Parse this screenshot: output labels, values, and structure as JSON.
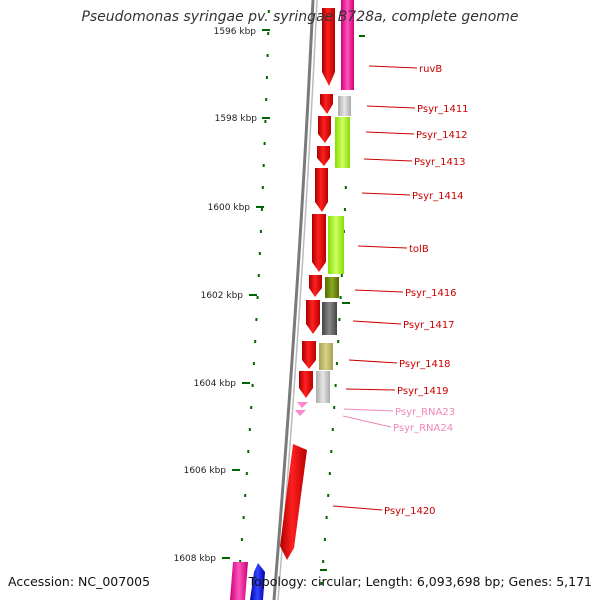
{
  "title": "Pseudomonas syringae pv. syringae B728a, complete genome",
  "footer": {
    "accession": "Accession: NC_007005",
    "summary": "Topology: circular; Length: 6,093,698 bp; Genes: 5,171"
  },
  "ruler": {
    "ticks": [
      {
        "label": "1596 kbp"
      },
      {
        "label": "1598 kbp"
      },
      {
        "label": "1600 kbp"
      },
      {
        "label": "1602 kbp"
      },
      {
        "label": "1604 kbp"
      },
      {
        "label": "1606 kbp"
      },
      {
        "label": "1608 kbp"
      }
    ]
  },
  "genes": [
    {
      "label": "ruvB",
      "color": "#cc0000"
    },
    {
      "label": "Psyr_1411",
      "color": "#cc0000"
    },
    {
      "label": "Psyr_1412",
      "color": "#cc0000"
    },
    {
      "label": "Psyr_1413",
      "color": "#cc0000"
    },
    {
      "label": "Psyr_1414",
      "color": "#cc0000"
    },
    {
      "label": "tolB",
      "color": "#cc0000"
    },
    {
      "label": "Psyr_1416",
      "color": "#cc0000"
    },
    {
      "label": "Psyr_1417",
      "color": "#cc0000"
    },
    {
      "label": "Psyr_1418",
      "color": "#cc0000"
    },
    {
      "label": "Psyr_1419",
      "color": "#cc0000"
    },
    {
      "label": "Psyr_RNA23",
      "color": "#ee88bb"
    },
    {
      "label": "Psyr_RNA24",
      "color": "#ee88bb"
    },
    {
      "label": "Psyr_1420",
      "color": "#cc0000"
    }
  ],
  "colors": {
    "cds": "#ff0000",
    "rna": "#ff88cc",
    "backbone": "#888888",
    "tick": "#006600"
  }
}
